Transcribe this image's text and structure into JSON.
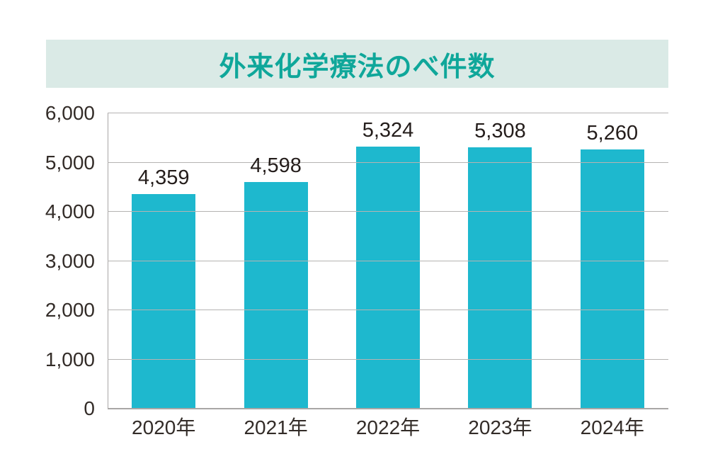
{
  "banner": {
    "title": "外来化学療法のべ件数",
    "bg_color": "#DAEAE6",
    "text_color": "#0FA79A"
  },
  "chart_data": {
    "type": "bar",
    "title": "外来化学療法のべ件数",
    "categories": [
      "2020年",
      "2021年",
      "2022年",
      "2023年",
      "2024年"
    ],
    "values": [
      4359,
      4598,
      5324,
      5308,
      5260
    ],
    "value_labels": [
      "4,359",
      "4,598",
      "5,324",
      "5,308",
      "5,260"
    ],
    "xlabel": "",
    "ylabel": "",
    "ylim": [
      0,
      6000
    ],
    "ytick_step": 1000,
    "ytick_labels": [
      "0",
      "1,000",
      "2,000",
      "3,000",
      "4,000",
      "5,000",
      "6,000"
    ],
    "grid": true,
    "legend": "none",
    "colors": {
      "bar": "#1EB8CE",
      "gridline": "#B5B3B2",
      "axis": "#A9A7A6",
      "tick_text": "#332C28",
      "value_text": "#241D1B"
    }
  }
}
